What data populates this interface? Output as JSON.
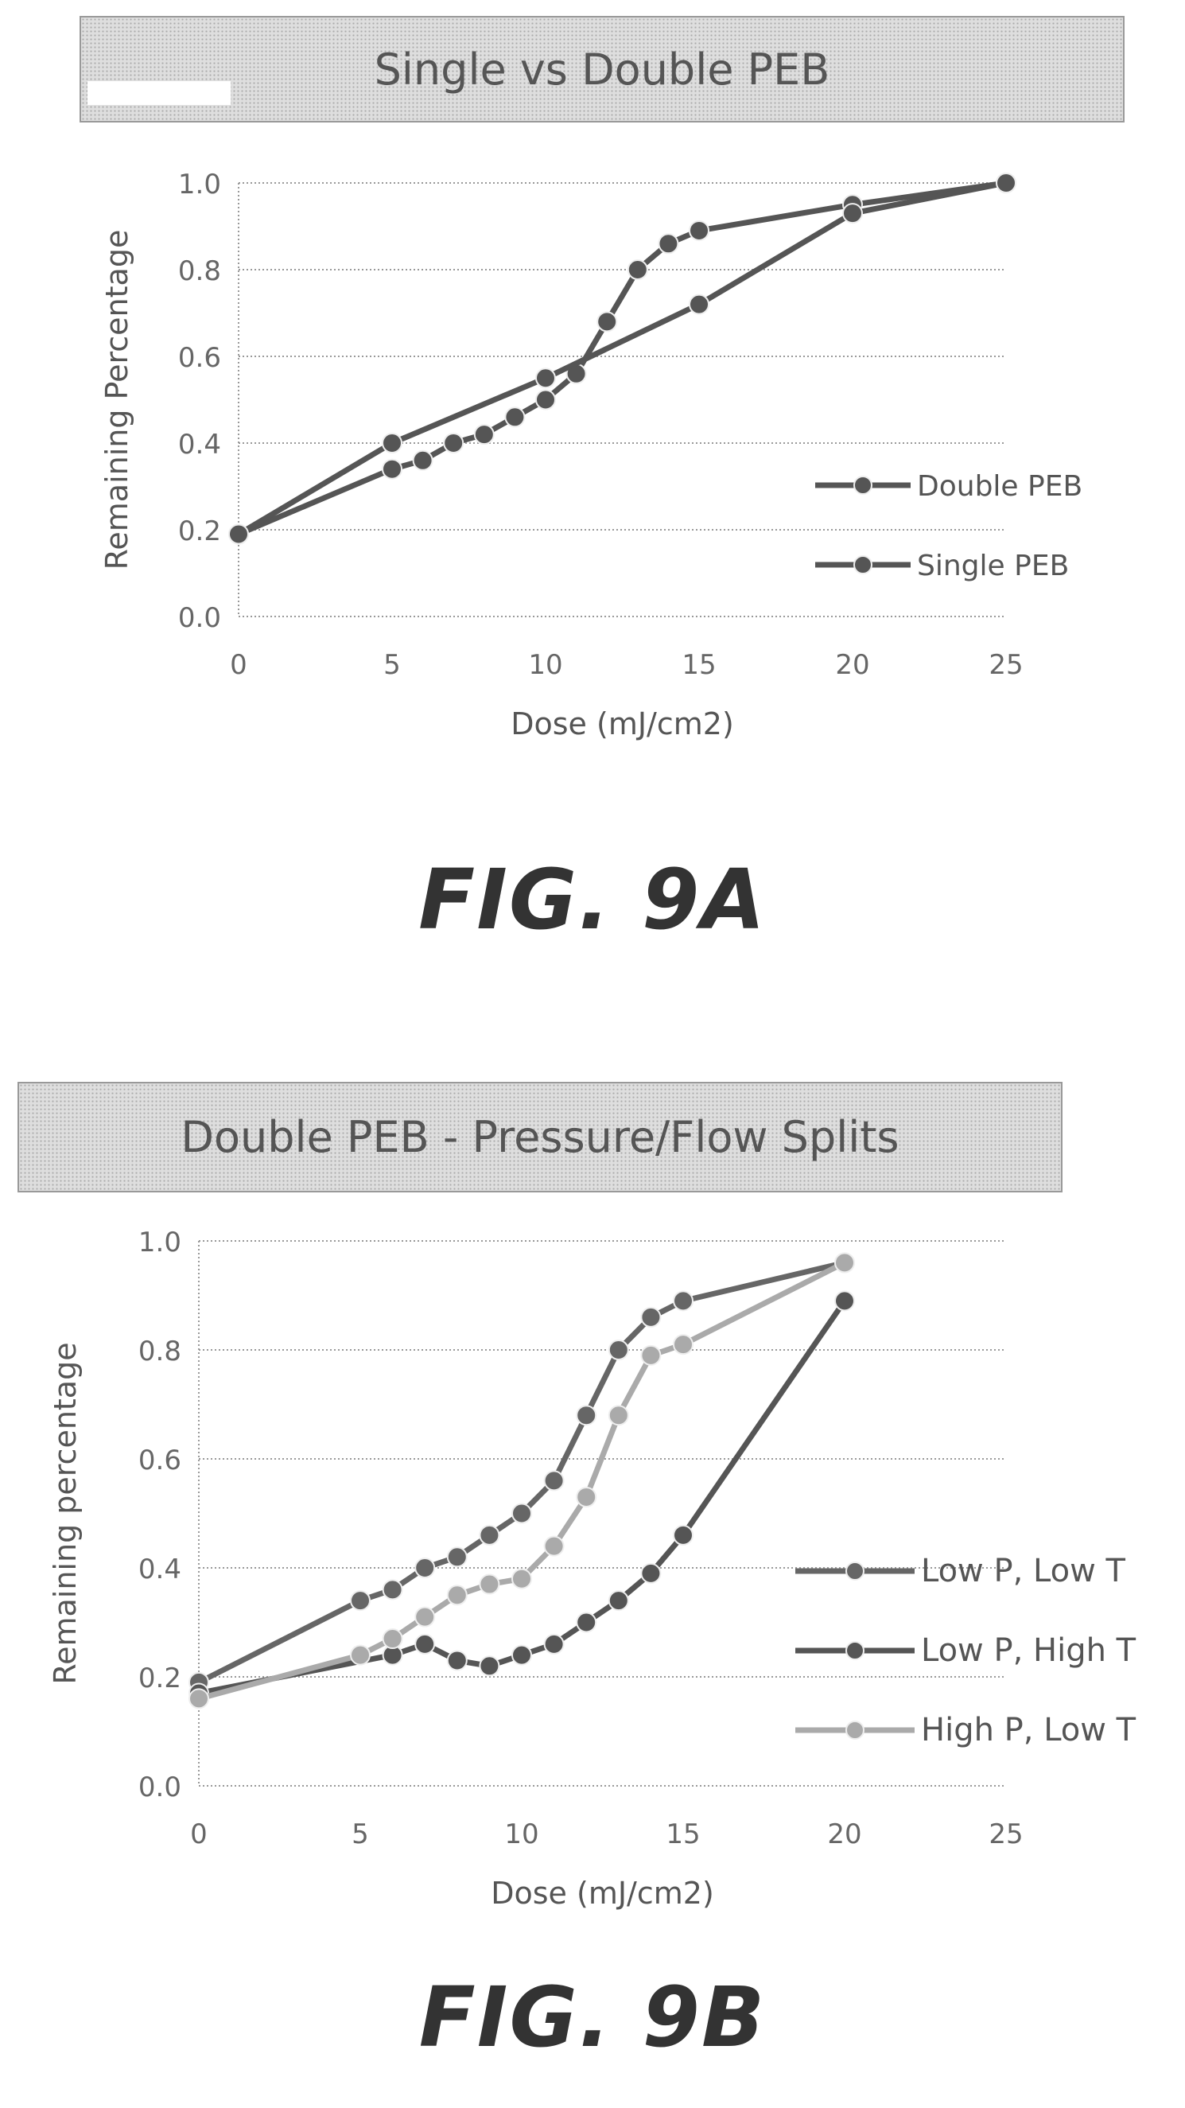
{
  "figures": [
    {
      "fig_label": "FIG. 9A",
      "chart_data": {
        "type": "line",
        "title": "Single vs Double PEB",
        "xlabel": "Dose (mJ/cm2)",
        "ylabel": "Remaining Percentage",
        "xlim": [
          0,
          25
        ],
        "ylim": [
          0,
          1.0
        ],
        "xticks": [
          "0",
          "5",
          "10",
          "15",
          "20",
          "25"
        ],
        "yticks": [
          "0.0",
          "0.2",
          "0.4",
          "0.6",
          "0.8",
          "1.0"
        ],
        "grid": "horizontal-dotted",
        "legend_position": "right",
        "series": [
          {
            "name": "Double PEB",
            "color": "#555555",
            "x": [
              0,
              5,
              6,
              7,
              8,
              9,
              10,
              11,
              12,
              13,
              14,
              15,
              20,
              25
            ],
            "y": [
              0.19,
              0.34,
              0.36,
              0.4,
              0.42,
              0.46,
              0.5,
              0.56,
              0.68,
              0.8,
              0.86,
              0.89,
              0.95,
              1.0
            ]
          },
          {
            "name": "Single PEB",
            "color": "#555555",
            "x": [
              0,
              5,
              10,
              15,
              20,
              25
            ],
            "y": [
              0.19,
              0.4,
              0.55,
              0.72,
              0.93,
              1.0
            ]
          }
        ]
      }
    },
    {
      "fig_label": "FIG. 9B",
      "chart_data": {
        "type": "line",
        "title": "Double PEB - Pressure/Flow Splits",
        "xlabel": "Dose (mJ/cm2)",
        "ylabel": "Remaining percentage",
        "xlim": [
          0,
          25
        ],
        "ylim": [
          0,
          1.0
        ],
        "xticks": [
          "0",
          "5",
          "10",
          "15",
          "20",
          "25"
        ],
        "yticks": [
          "0.0",
          "0.2",
          "0.4",
          "0.6",
          "0.8",
          "1.0"
        ],
        "grid": "horizontal-dotted",
        "legend_position": "right",
        "series": [
          {
            "name": "Low P, Low T",
            "color": "#666666",
            "x": [
              0,
              5,
              6,
              7,
              8,
              9,
              10,
              11,
              12,
              13,
              14,
              15,
              20
            ],
            "y": [
              0.19,
              0.34,
              0.36,
              0.4,
              0.42,
              0.46,
              0.5,
              0.56,
              0.68,
              0.8,
              0.86,
              0.89,
              0.96
            ]
          },
          {
            "name": "Low P, High T",
            "color": "#555555",
            "x": [
              0,
              6,
              7,
              8,
              9,
              10,
              11,
              12,
              13,
              14,
              15,
              20
            ],
            "y": [
              0.17,
              0.24,
              0.26,
              0.23,
              0.22,
              0.24,
              0.26,
              0.3,
              0.34,
              0.39,
              0.46,
              0.89
            ]
          },
          {
            "name": "High P, Low T",
            "color": "#aaaaaa",
            "x": [
              0,
              5,
              6,
              7,
              8,
              9,
              10,
              11,
              12,
              13,
              14,
              15,
              20
            ],
            "y": [
              0.16,
              0.24,
              0.27,
              0.31,
              0.35,
              0.37,
              0.38,
              0.44,
              0.53,
              0.68,
              0.79,
              0.81,
              0.96
            ]
          }
        ]
      }
    }
  ]
}
